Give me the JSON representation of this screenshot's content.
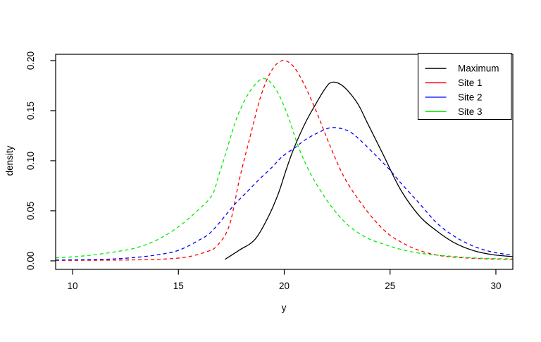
{
  "figure": {
    "background": "#ffffff",
    "title": ""
  },
  "chart_data": {
    "type": "line",
    "title": "",
    "xlabel": "y",
    "ylabel": "density",
    "xlim": [
      9.2,
      30.8
    ],
    "ylim": [
      -0.0085,
      0.2063
    ],
    "x_ticks": [
      10,
      15,
      20,
      25,
      30
    ],
    "y_ticks": [
      "0.00",
      "0.05",
      "0.10",
      "0.15",
      "0.20"
    ],
    "grid": false,
    "box": true,
    "legend_position": "top-right",
    "series": [
      {
        "name": "Maximum",
        "color": "#000000",
        "line_style": "solid",
        "points": [
          [
            17.2,
            0.0015
          ],
          [
            17.9,
            0.011
          ],
          [
            18.6,
            0.021
          ],
          [
            19.2,
            0.042
          ],
          [
            19.7,
            0.066
          ],
          [
            20.1,
            0.0915
          ],
          [
            20.45,
            0.112
          ],
          [
            21.0,
            0.138
          ],
          [
            21.5,
            0.157
          ],
          [
            21.9,
            0.171
          ],
          [
            22.2,
            0.178
          ],
          [
            22.6,
            0.177
          ],
          [
            23.0,
            0.17
          ],
          [
            23.5,
            0.156
          ],
          [
            23.9,
            0.139
          ],
          [
            24.7,
            0.105
          ],
          [
            25.5,
            0.071
          ],
          [
            26.4,
            0.0445
          ],
          [
            27.2,
            0.03
          ],
          [
            28.0,
            0.0185
          ],
          [
            28.9,
            0.0105
          ],
          [
            29.8,
            0.0063
          ],
          [
            30.8,
            0.0042
          ]
        ]
      },
      {
        "name": "Site 1",
        "color": "#ff0000",
        "line_style": "dashed",
        "points": [
          [
            9.2,
            0.0005
          ],
          [
            11.0,
            0.0006
          ],
          [
            13.0,
            0.001
          ],
          [
            14.5,
            0.002
          ],
          [
            15.5,
            0.0042
          ],
          [
            16.3,
            0.009
          ],
          [
            16.8,
            0.0145
          ],
          [
            17.4,
            0.035
          ],
          [
            17.9,
            0.083
          ],
          [
            18.4,
            0.125
          ],
          [
            18.9,
            0.165
          ],
          [
            19.4,
            0.19
          ],
          [
            19.9,
            0.2
          ],
          [
            20.4,
            0.195
          ],
          [
            20.9,
            0.178
          ],
          [
            21.5,
            0.15
          ],
          [
            22.2,
            0.113
          ],
          [
            22.9,
            0.081
          ],
          [
            23.9,
            0.05
          ],
          [
            24.8,
            0.029
          ],
          [
            25.5,
            0.019
          ],
          [
            26.3,
            0.011
          ],
          [
            27.2,
            0.0058
          ],
          [
            28.1,
            0.0036
          ],
          [
            29.0,
            0.0025
          ],
          [
            30.0,
            0.0018
          ],
          [
            30.8,
            0.0015
          ]
        ]
      },
      {
        "name": "Site 2",
        "color": "#0000ff",
        "line_style": "dashed",
        "points": [
          [
            9.2,
            0.0008
          ],
          [
            11.0,
            0.0013
          ],
          [
            12.0,
            0.002
          ],
          [
            13.0,
            0.0035
          ],
          [
            14.0,
            0.006
          ],
          [
            15.0,
            0.0105
          ],
          [
            16.0,
            0.021
          ],
          [
            16.6,
            0.03
          ],
          [
            17.6,
            0.055
          ],
          [
            18.2,
            0.068
          ],
          [
            18.8,
            0.081
          ],
          [
            19.4,
            0.093
          ],
          [
            19.9,
            0.104
          ],
          [
            20.5,
            0.113
          ],
          [
            21.0,
            0.121
          ],
          [
            21.6,
            0.128
          ],
          [
            22.2,
            0.133
          ],
          [
            22.8,
            0.1315
          ],
          [
            23.3,
            0.126
          ],
          [
            24.2,
            0.108
          ],
          [
            25.0,
            0.0905
          ],
          [
            25.5,
            0.078
          ],
          [
            26.4,
            0.057
          ],
          [
            27.2,
            0.038
          ],
          [
            28.0,
            0.025
          ],
          [
            28.9,
            0.015
          ],
          [
            29.8,
            0.009
          ],
          [
            30.8,
            0.0055
          ]
        ]
      },
      {
        "name": "Site 3",
        "color": "#00ee00",
        "line_style": "dashed",
        "points": [
          [
            9.2,
            0.003
          ],
          [
            10.0,
            0.004
          ],
          [
            11.0,
            0.006
          ],
          [
            12.0,
            0.009
          ],
          [
            13.0,
            0.013
          ],
          [
            14.0,
            0.021
          ],
          [
            15.0,
            0.034
          ],
          [
            16.0,
            0.052
          ],
          [
            16.6,
            0.066
          ],
          [
            16.9,
            0.085
          ],
          [
            17.2,
            0.105
          ],
          [
            17.6,
            0.133
          ],
          [
            17.9,
            0.15
          ],
          [
            18.4,
            0.17
          ],
          [
            19.0,
            0.182
          ],
          [
            19.55,
            0.173
          ],
          [
            20.1,
            0.149
          ],
          [
            20.65,
            0.115
          ],
          [
            21.1,
            0.093
          ],
          [
            21.5,
            0.0775
          ],
          [
            22.2,
            0.055
          ],
          [
            23.0,
            0.036
          ],
          [
            23.9,
            0.023
          ],
          [
            24.8,
            0.016
          ],
          [
            25.5,
            0.0115
          ],
          [
            26.3,
            0.008
          ],
          [
            27.2,
            0.0058
          ],
          [
            28.9,
            0.003
          ],
          [
            30.0,
            0.0023
          ],
          [
            30.8,
            0.002
          ]
        ]
      }
    ],
    "legend": {
      "entries": [
        {
          "label": "Maximum",
          "color": "#000000",
          "sample_style": "solid"
        },
        {
          "label": "Site 1",
          "color": "#ff0000",
          "sample_style": "solid"
        },
        {
          "label": "Site 2",
          "color": "#0000ff",
          "sample_style": "solid"
        },
        {
          "label": "Site 3",
          "color": "#00ee00",
          "sample_style": "solid"
        }
      ]
    }
  }
}
